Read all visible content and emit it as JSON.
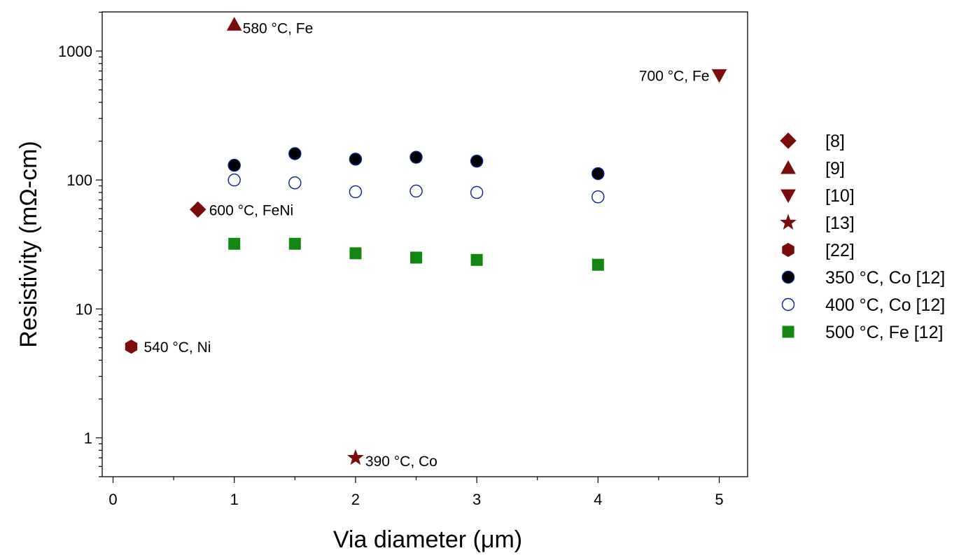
{
  "chart_data": {
    "type": "scatter",
    "title": "",
    "xlabel": "Via diameter (μm)",
    "ylabel": "Resistivity (mΩ-cm)",
    "x_scale": "linear",
    "y_scale": "log",
    "xlim": [
      -0.1,
      5.2
    ],
    "ylim": [
      0.5,
      2000
    ],
    "x_ticks": [
      0,
      1,
      2,
      3,
      4,
      5
    ],
    "x_tick_labels": [
      "0",
      "1",
      "2",
      "3",
      "4",
      "5"
    ],
    "y_ticks": [
      1,
      10,
      100,
      1000
    ],
    "y_tick_labels": [
      "1",
      "10",
      "100",
      "1000"
    ],
    "grid": false,
    "legend_position": "right",
    "series": [
      {
        "name": "[8]",
        "marker": "diamond",
        "color": "#7b0c0c",
        "filled": true,
        "points": [
          {
            "x": 0.7,
            "y": 59,
            "label": "600 °C, FeNi"
          }
        ]
      },
      {
        "name": "[9]",
        "marker": "triangle-up",
        "color": "#7b0c0c",
        "filled": true,
        "points": [
          {
            "x": 1.0,
            "y": 1600,
            "label": "580 °C, Fe"
          }
        ]
      },
      {
        "name": "[10]",
        "marker": "triangle-down",
        "color": "#7b0c0c",
        "filled": true,
        "points": [
          {
            "x": 5.0,
            "y": 650,
            "label": "700 °C, Fe"
          }
        ]
      },
      {
        "name": "[13]",
        "marker": "star",
        "color": "#7b0c0c",
        "filled": true,
        "points": [
          {
            "x": 2.0,
            "y": 0.7,
            "label": "390 °C, Co"
          }
        ]
      },
      {
        "name": "[22]",
        "marker": "hexagon",
        "color": "#7b0c0c",
        "filled": true,
        "points": [
          {
            "x": 0.15,
            "y": 5.1,
            "label": "540 °C, Ni"
          }
        ]
      },
      {
        "name": "350 °C, Co [12]",
        "marker": "circle",
        "color": "#000000",
        "edge": "#0a1f8f",
        "filled": true,
        "points": [
          {
            "x": 1.0,
            "y": 130
          },
          {
            "x": 1.5,
            "y": 160
          },
          {
            "x": 2.0,
            "y": 145
          },
          {
            "x": 2.5,
            "y": 150
          },
          {
            "x": 3.0,
            "y": 140
          },
          {
            "x": 4.0,
            "y": 112
          }
        ]
      },
      {
        "name": "400 °C, Co [12]",
        "marker": "circle",
        "color": "#0a1f8f",
        "filled": false,
        "points": [
          {
            "x": 1.0,
            "y": 100
          },
          {
            "x": 1.5,
            "y": 95
          },
          {
            "x": 2.0,
            "y": 81
          },
          {
            "x": 2.5,
            "y": 82
          },
          {
            "x": 3.0,
            "y": 80
          },
          {
            "x": 4.0,
            "y": 74
          }
        ]
      },
      {
        "name": "500 °C, Fe [12]",
        "marker": "square",
        "color": "#118811",
        "filled": true,
        "points": [
          {
            "x": 1.0,
            "y": 32
          },
          {
            "x": 1.5,
            "y": 32
          },
          {
            "x": 2.0,
            "y": 27
          },
          {
            "x": 2.5,
            "y": 25
          },
          {
            "x": 3.0,
            "y": 24
          },
          {
            "x": 4.0,
            "y": 22
          }
        ]
      }
    ]
  }
}
